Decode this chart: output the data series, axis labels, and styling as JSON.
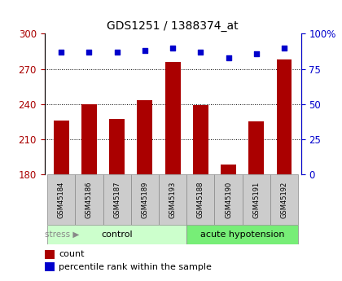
{
  "title": "GDS1251 / 1388374_at",
  "samples": [
    "GSM45184",
    "GSM45186",
    "GSM45187",
    "GSM45189",
    "GSM45193",
    "GSM45188",
    "GSM45190",
    "GSM45191",
    "GSM45192"
  ],
  "counts": [
    226,
    240,
    227,
    243,
    276,
    239,
    188,
    225,
    278
  ],
  "percentiles": [
    87,
    87,
    87,
    88,
    90,
    87,
    83,
    86,
    90
  ],
  "ylim_left": [
    180,
    300
  ],
  "ylim_right": [
    0,
    100
  ],
  "yticks_left": [
    180,
    210,
    240,
    270,
    300
  ],
  "yticks_right": [
    0,
    25,
    50,
    75,
    100
  ],
  "ytick_right_labels": [
    "0",
    "25",
    "50",
    "75",
    "100%"
  ],
  "bar_color": "#aa0000",
  "dot_color": "#0000cc",
  "grid_color": "#000000",
  "control_label": "control",
  "acute_label": "acute hypotension",
  "stress_label": "stress",
  "control_indices": [
    0,
    1,
    2,
    3,
    4
  ],
  "acute_indices": [
    5,
    6,
    7,
    8
  ],
  "control_bg": "#ccffcc",
  "acute_bg": "#77ee77",
  "sample_bg": "#cccccc",
  "legend_count_label": "count",
  "legend_pct_label": "percentile rank within the sample",
  "bar_width": 0.55,
  "grid_yticks": [
    210,
    240,
    270
  ]
}
